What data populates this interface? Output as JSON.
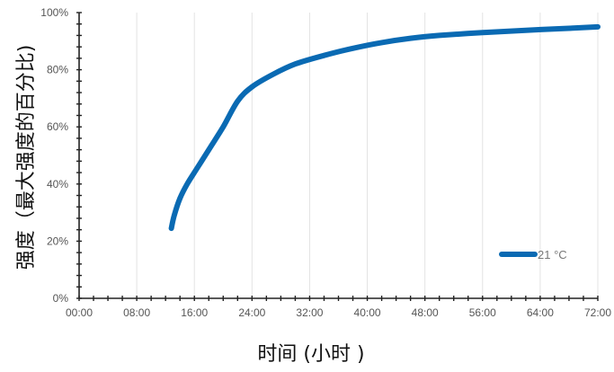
{
  "chart_data": {
    "type": "line",
    "title": "",
    "xlabel": "时间 (小时 )",
    "ylabel": "强度（最大强度的百分比)",
    "x_ticks": [
      "00:00",
      "08:00",
      "16:00",
      "24:00",
      "32:00",
      "40:00",
      "48:00",
      "56:00",
      "64:00",
      "72:00"
    ],
    "y_ticks": [
      "0%",
      "20%",
      "40%",
      "60%",
      "80%",
      "100%"
    ],
    "xlim_hours": [
      0,
      72
    ],
    "ylim_percent": [
      0,
      100
    ],
    "grid": "vertical",
    "legend_position": "bottom-right",
    "series": [
      {
        "name": "21 °C",
        "color": "#0a6ab3",
        "x_hours": [
          12.8,
          13.2,
          14,
          15,
          16.5,
          18,
          20,
          22,
          24,
          27,
          30,
          34,
          38,
          42,
          46,
          50,
          56,
          62,
          68,
          72
        ],
        "y_percent": [
          24.5,
          29,
          35,
          40,
          46,
          52,
          60,
          69,
          74,
          78.5,
          82,
          85,
          87.5,
          89.5,
          91,
          92,
          93,
          93.8,
          94.5,
          95
        ]
      }
    ]
  }
}
